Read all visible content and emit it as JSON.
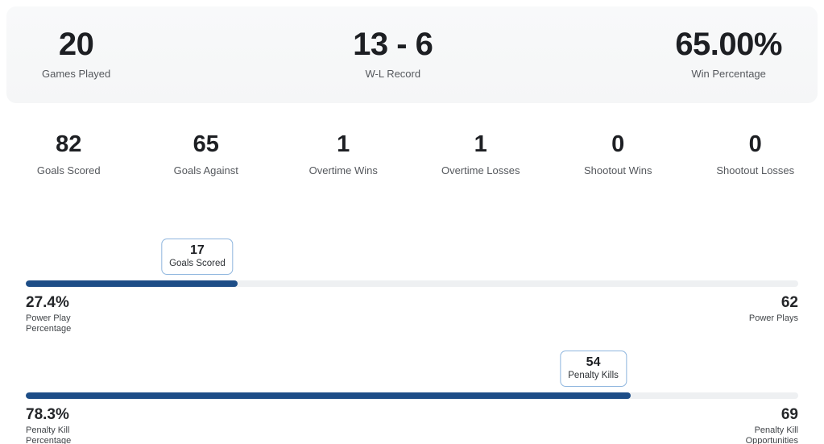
{
  "summary": {
    "stats": [
      {
        "value": "20",
        "label": "Games Played"
      },
      {
        "value": "13 - 6",
        "label": "W-L Record"
      },
      {
        "value": "65.00%",
        "label": "Win Percentage"
      }
    ]
  },
  "secondary_stats": [
    {
      "value": "82",
      "label": "Goals Scored"
    },
    {
      "value": "65",
      "label": "Goals Against"
    },
    {
      "value": "1",
      "label": "Overtime Wins"
    },
    {
      "value": "1",
      "label": "Overtime Losses"
    },
    {
      "value": "0",
      "label": "Shootout Wins"
    },
    {
      "value": "0",
      "label": "Shootout Losses"
    }
  ],
  "special_teams": [
    {
      "name": "power-play",
      "badge_value": "17",
      "badge_label": "Goals Scored",
      "percent_display": "27.4%",
      "percent_value": 27.4,
      "left_label_lines": [
        "Power Play",
        "Percentage"
      ],
      "right_value": "62",
      "right_label_lines": [
        "Power Plays"
      ]
    },
    {
      "name": "penalty-kill",
      "badge_value": "54",
      "badge_label": "Penalty Kills",
      "percent_display": "78.3%",
      "percent_value": 78.3,
      "left_label_lines": [
        "Penalty Kill",
        "Percentage"
      ],
      "right_value": "69",
      "right_label_lines": [
        "Penalty Kill",
        "Opportunities"
      ]
    }
  ],
  "colors": {
    "bar_fill": "#1d4d87",
    "bar_track": "#eef0f2",
    "badge_border": "#8fb6de",
    "panel_background": "#f6f7f8"
  }
}
